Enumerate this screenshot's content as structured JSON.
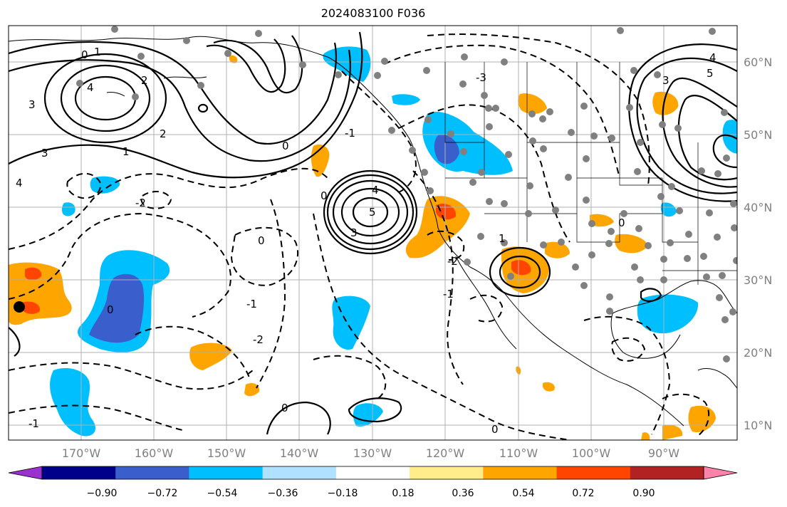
{
  "title": "2024083100 F036",
  "longitude_labels": [
    "170°W",
    "160°W",
    "150°W",
    "140°W",
    "130°W",
    "120°W",
    "110°W",
    "100°W",
    "90°W"
  ],
  "latitude_labels": [
    "60°N",
    "50°N",
    "40°N",
    "30°N",
    "20°N",
    "10°N"
  ],
  "colorbar": {
    "tick_labels": [
      "−0.90",
      "−0.72",
      "−0.54",
      "−0.36",
      "−0.18",
      "0.18",
      "0.36",
      "0.54",
      "0.72",
      "0.90"
    ],
    "colors": [
      "#9a32cd",
      "#00008b",
      "#3a5fcd",
      "#00bfff",
      "#b0e2ff",
      "#ffffff",
      "#ffec8b",
      "#ffa500",
      "#ff4500",
      "#b22222",
      "#ff82ab"
    ]
  },
  "contour_labels": {
    "north_pacific_low": [
      "0",
      "1",
      "4",
      "3",
      "2",
      "3",
      "4",
      "2",
      "1",
      "0"
    ],
    "offshore_high": [
      "4",
      "5",
      "3",
      "0"
    ],
    "southwest_low": [
      "1",
      "0"
    ],
    "dashed_field": [
      "-2",
      "0",
      "-1",
      "-2",
      "-1",
      "0",
      "-1",
      "-3",
      "-2",
      "-1",
      "0"
    ],
    "east_side": [
      "4",
      "3",
      "5",
      "0"
    ]
  },
  "colors": {
    "land_outline": "#000000",
    "grid": "#b0b0b0",
    "station_dot": "#808080"
  }
}
